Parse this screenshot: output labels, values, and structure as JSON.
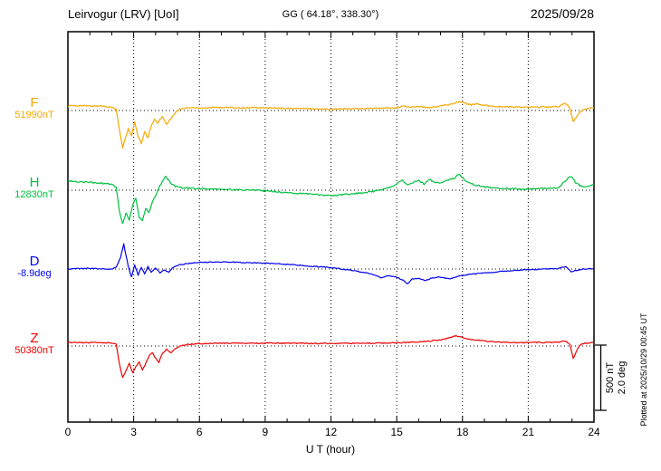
{
  "header": {
    "station": "Leirvogur (LRV)  [UoI]",
    "coords": "GG ( 64.18°, 338.30°)",
    "date": "2025/09/28"
  },
  "side": {
    "scale_nt": "500 nT",
    "scale_deg": "2.0 deg",
    "plotted": "Plotted at 2025/10/29 00:45 UT"
  },
  "chart_data": {
    "type": "line",
    "title": "Leirvogur (LRV) [UoI] magnetogram 2025/09/28",
    "xlabel": "U T (hour)",
    "x_range": [
      0,
      24
    ],
    "x_ticks": [
      0,
      3,
      6,
      9,
      12,
      15,
      18,
      21,
      24
    ],
    "grid": "vertical dotted lines at 3-hour ticks; dotted horizontal baseline per trace; minor hourly ticks on top and bottom axes",
    "legend": "trace letters and baseline values on left, colored per trace",
    "scale": {
      "nT_per_bar": 500,
      "deg_per_bar": 2.0
    },
    "series": [
      {
        "name": "F",
        "unit": "nT",
        "baseline_label": "51990nT",
        "baseline_value": 51990,
        "color": "#f5a800",
        "noise": 5,
        "points": [
          [
            0,
            35
          ],
          [
            0.5,
            38
          ],
          [
            1,
            34
          ],
          [
            1.5,
            36
          ],
          [
            1.8,
            30
          ],
          [
            2.0,
            25
          ],
          [
            2.2,
            10
          ],
          [
            2.35,
            -150
          ],
          [
            2.5,
            -285
          ],
          [
            2.6,
            -220
          ],
          [
            2.75,
            -140
          ],
          [
            2.9,
            -195
          ],
          [
            3.05,
            -90
          ],
          [
            3.2,
            -200
          ],
          [
            3.35,
            -255
          ],
          [
            3.5,
            -160
          ],
          [
            3.65,
            -210
          ],
          [
            3.8,
            -120
          ],
          [
            3.95,
            -70
          ],
          [
            4.1,
            -95
          ],
          [
            4.3,
            -45
          ],
          [
            4.5,
            -105
          ],
          [
            4.7,
            -60
          ],
          [
            4.9,
            -15
          ],
          [
            5.1,
            10
          ],
          [
            5.4,
            20
          ],
          [
            5.7,
            22
          ],
          [
            6,
            20
          ],
          [
            6.5,
            22
          ],
          [
            7,
            24
          ],
          [
            7.5,
            22
          ],
          [
            8,
            20
          ],
          [
            8.5,
            22
          ],
          [
            9,
            20
          ],
          [
            9.5,
            18
          ],
          [
            10,
            16
          ],
          [
            10.5,
            15
          ],
          [
            11,
            14
          ],
          [
            11.5,
            12
          ],
          [
            12,
            10
          ],
          [
            12.5,
            12
          ],
          [
            13,
            14
          ],
          [
            13.5,
            15
          ],
          [
            14,
            16
          ],
          [
            14.5,
            18
          ],
          [
            15,
            22
          ],
          [
            15.3,
            35
          ],
          [
            15.6,
            25
          ],
          [
            16,
            30
          ],
          [
            16.4,
            22
          ],
          [
            16.8,
            28
          ],
          [
            17.2,
            40
          ],
          [
            17.6,
            55
          ],
          [
            17.9,
            70
          ],
          [
            18.1,
            55
          ],
          [
            18.4,
            45
          ],
          [
            18.7,
            50
          ],
          [
            19,
            38
          ],
          [
            19.5,
            32
          ],
          [
            20,
            28
          ],
          [
            20.5,
            26
          ],
          [
            21,
            25
          ],
          [
            21.5,
            26
          ],
          [
            22,
            28
          ],
          [
            22.4,
            30
          ],
          [
            22.7,
            55
          ],
          [
            22.9,
            20
          ],
          [
            23.05,
            -85
          ],
          [
            23.2,
            -50
          ],
          [
            23.35,
            -15
          ],
          [
            23.5,
            5
          ],
          [
            23.7,
            15
          ],
          [
            24,
            22
          ]
        ]
      },
      {
        "name": "H",
        "unit": "nT",
        "baseline_label": "12830nT",
        "baseline_value": 12830,
        "color": "#00c040",
        "noise": 6,
        "points": [
          [
            0,
            70
          ],
          [
            0.5,
            65
          ],
          [
            1,
            60
          ],
          [
            1.5,
            55
          ],
          [
            1.8,
            50
          ],
          [
            2.0,
            45
          ],
          [
            2.2,
            20
          ],
          [
            2.35,
            -160
          ],
          [
            2.5,
            -255
          ],
          [
            2.65,
            -180
          ],
          [
            2.8,
            -230
          ],
          [
            2.95,
            -120
          ],
          [
            3.1,
            -60
          ],
          [
            3.25,
            -205
          ],
          [
            3.4,
            -235
          ],
          [
            3.55,
            -140
          ],
          [
            3.7,
            -170
          ],
          [
            3.85,
            -90
          ],
          [
            4.0,
            -40
          ],
          [
            4.15,
            20
          ],
          [
            4.3,
            60
          ],
          [
            4.45,
            105
          ],
          [
            4.6,
            75
          ],
          [
            4.75,
            45
          ],
          [
            4.9,
            30
          ],
          [
            5.1,
            20
          ],
          [
            5.5,
            15
          ],
          [
            6,
            12
          ],
          [
            6.5,
            10
          ],
          [
            7,
            8
          ],
          [
            7.5,
            5
          ],
          [
            8,
            2
          ],
          [
            8.5,
            0
          ],
          [
            9,
            -5
          ],
          [
            9.5,
            -12
          ],
          [
            10,
            -18
          ],
          [
            10.5,
            -25
          ],
          [
            11,
            -30
          ],
          [
            11.5,
            -35
          ],
          [
            12,
            -42
          ],
          [
            12.5,
            -35
          ],
          [
            13,
            -28
          ],
          [
            13.5,
            -18
          ],
          [
            14,
            -8
          ],
          [
            14.5,
            10
          ],
          [
            15,
            45
          ],
          [
            15.25,
            80
          ],
          [
            15.5,
            35
          ],
          [
            15.75,
            60
          ],
          [
            16,
            75
          ],
          [
            16.25,
            45
          ],
          [
            16.5,
            85
          ],
          [
            16.75,
            55
          ],
          [
            17,
            60
          ],
          [
            17.3,
            75
          ],
          [
            17.6,
            90
          ],
          [
            17.85,
            125
          ],
          [
            18.05,
            85
          ],
          [
            18.3,
            55
          ],
          [
            18.6,
            40
          ],
          [
            19,
            25
          ],
          [
            19.5,
            18
          ],
          [
            20,
            12
          ],
          [
            20.5,
            10
          ],
          [
            21,
            10
          ],
          [
            21.5,
            12
          ],
          [
            22,
            15
          ],
          [
            22.4,
            20
          ],
          [
            22.7,
            75
          ],
          [
            22.95,
            110
          ],
          [
            23.15,
            60
          ],
          [
            23.35,
            35
          ],
          [
            23.6,
            30
          ],
          [
            24,
            45
          ]
        ]
      },
      {
        "name": "D",
        "unit": "deg",
        "baseline_label": "-8.9deg",
        "baseline_value": -8.9,
        "color": "#0000ee",
        "noise": 0.015,
        "points": [
          [
            0,
            0
          ],
          [
            0.5,
            0.01
          ],
          [
            1,
            0.02
          ],
          [
            1.5,
            0.01
          ],
          [
            2,
            0
          ],
          [
            2.2,
            0.05
          ],
          [
            2.4,
            0.35
          ],
          [
            2.55,
            0.78
          ],
          [
            2.65,
            0.4
          ],
          [
            2.75,
            0.1
          ],
          [
            2.9,
            -0.25
          ],
          [
            3.05,
            0.12
          ],
          [
            3.2,
            -0.18
          ],
          [
            3.35,
            0.05
          ],
          [
            3.5,
            -0.15
          ],
          [
            3.65,
            0.08
          ],
          [
            3.8,
            -0.1
          ],
          [
            4.0,
            0.04
          ],
          [
            4.2,
            -0.12
          ],
          [
            4.4,
            -0.02
          ],
          [
            4.6,
            -0.1
          ],
          [
            4.8,
            0.05
          ],
          [
            5,
            0.12
          ],
          [
            5.5,
            0.17
          ],
          [
            6,
            0.2
          ],
          [
            6.5,
            0.21
          ],
          [
            7,
            0.22
          ],
          [
            7.5,
            0.21
          ],
          [
            8,
            0.2
          ],
          [
            8.5,
            0.19
          ],
          [
            9,
            0.18
          ],
          [
            9.5,
            0.16
          ],
          [
            10,
            0.14
          ],
          [
            10.5,
            0.12
          ],
          [
            11,
            0.09
          ],
          [
            11.5,
            0.07
          ],
          [
            12,
            0.04
          ],
          [
            12.5,
            0
          ],
          [
            13,
            -0.05
          ],
          [
            13.5,
            -0.1
          ],
          [
            14,
            -0.18
          ],
          [
            14.3,
            -0.28
          ],
          [
            14.6,
            -0.2
          ],
          [
            15,
            -0.25
          ],
          [
            15.3,
            -0.35
          ],
          [
            15.5,
            -0.45
          ],
          [
            15.7,
            -0.3
          ],
          [
            16,
            -0.28
          ],
          [
            16.3,
            -0.35
          ],
          [
            16.6,
            -0.28
          ],
          [
            17,
            -0.25
          ],
          [
            17.4,
            -0.3
          ],
          [
            17.8,
            -0.22
          ],
          [
            18.2,
            -0.18
          ],
          [
            18.6,
            -0.15
          ],
          [
            19,
            -0.12
          ],
          [
            19.5,
            -0.09
          ],
          [
            20,
            -0.06
          ],
          [
            20.5,
            -0.04
          ],
          [
            21,
            -0.02
          ],
          [
            21.5,
            -0.01
          ],
          [
            22,
            0
          ],
          [
            22.4,
            0.02
          ],
          [
            22.7,
            0.08
          ],
          [
            22.95,
            -0.08
          ],
          [
            23.2,
            -0.04
          ],
          [
            23.5,
            0
          ],
          [
            24,
            0.01
          ]
        ]
      },
      {
        "name": "Z",
        "unit": "nT",
        "baseline_label": "50380nT",
        "baseline_value": 50380,
        "color": "#ee0000",
        "noise": 4,
        "points": [
          [
            0,
            28
          ],
          [
            0.5,
            27
          ],
          [
            1,
            26
          ],
          [
            1.5,
            26
          ],
          [
            2,
            24
          ],
          [
            2.2,
            15
          ],
          [
            2.35,
            -140
          ],
          [
            2.5,
            -245
          ],
          [
            2.65,
            -190
          ],
          [
            2.8,
            -135
          ],
          [
            2.95,
            -205
          ],
          [
            3.1,
            -160
          ],
          [
            3.25,
            -125
          ],
          [
            3.4,
            -185
          ],
          [
            3.55,
            -135
          ],
          [
            3.7,
            -75
          ],
          [
            3.85,
            -50
          ],
          [
            4.0,
            -95
          ],
          [
            4.15,
            -125
          ],
          [
            4.3,
            -60
          ],
          [
            4.5,
            -25
          ],
          [
            4.7,
            -55
          ],
          [
            4.9,
            -20
          ],
          [
            5.1,
            0
          ],
          [
            5.5,
            12
          ],
          [
            6,
            18
          ],
          [
            6.5,
            20
          ],
          [
            7,
            21
          ],
          [
            7.5,
            22
          ],
          [
            8,
            22
          ],
          [
            8.5,
            22
          ],
          [
            9,
            22
          ],
          [
            9.5,
            22
          ],
          [
            10,
            21
          ],
          [
            10.5,
            21
          ],
          [
            11,
            20
          ],
          [
            11.5,
            20
          ],
          [
            12,
            20
          ],
          [
            12.5,
            20
          ],
          [
            13,
            21
          ],
          [
            13.5,
            21
          ],
          [
            14,
            22
          ],
          [
            14.5,
            23
          ],
          [
            15,
            25
          ],
          [
            15.5,
            28
          ],
          [
            16,
            32
          ],
          [
            16.5,
            38
          ],
          [
            17,
            48
          ],
          [
            17.4,
            62
          ],
          [
            17.7,
            80
          ],
          [
            18,
            65
          ],
          [
            18.4,
            50
          ],
          [
            18.8,
            42
          ],
          [
            19.2,
            35
          ],
          [
            19.6,
            30
          ],
          [
            20,
            28
          ],
          [
            20.5,
            26
          ],
          [
            21,
            26
          ],
          [
            21.5,
            27
          ],
          [
            22,
            28
          ],
          [
            22.4,
            30
          ],
          [
            22.7,
            38
          ],
          [
            22.9,
            10
          ],
          [
            23.05,
            -95
          ],
          [
            23.2,
            -40
          ],
          [
            23.35,
            5
          ],
          [
            23.5,
            18
          ],
          [
            23.7,
            22
          ],
          [
            24,
            25
          ]
        ]
      }
    ]
  }
}
